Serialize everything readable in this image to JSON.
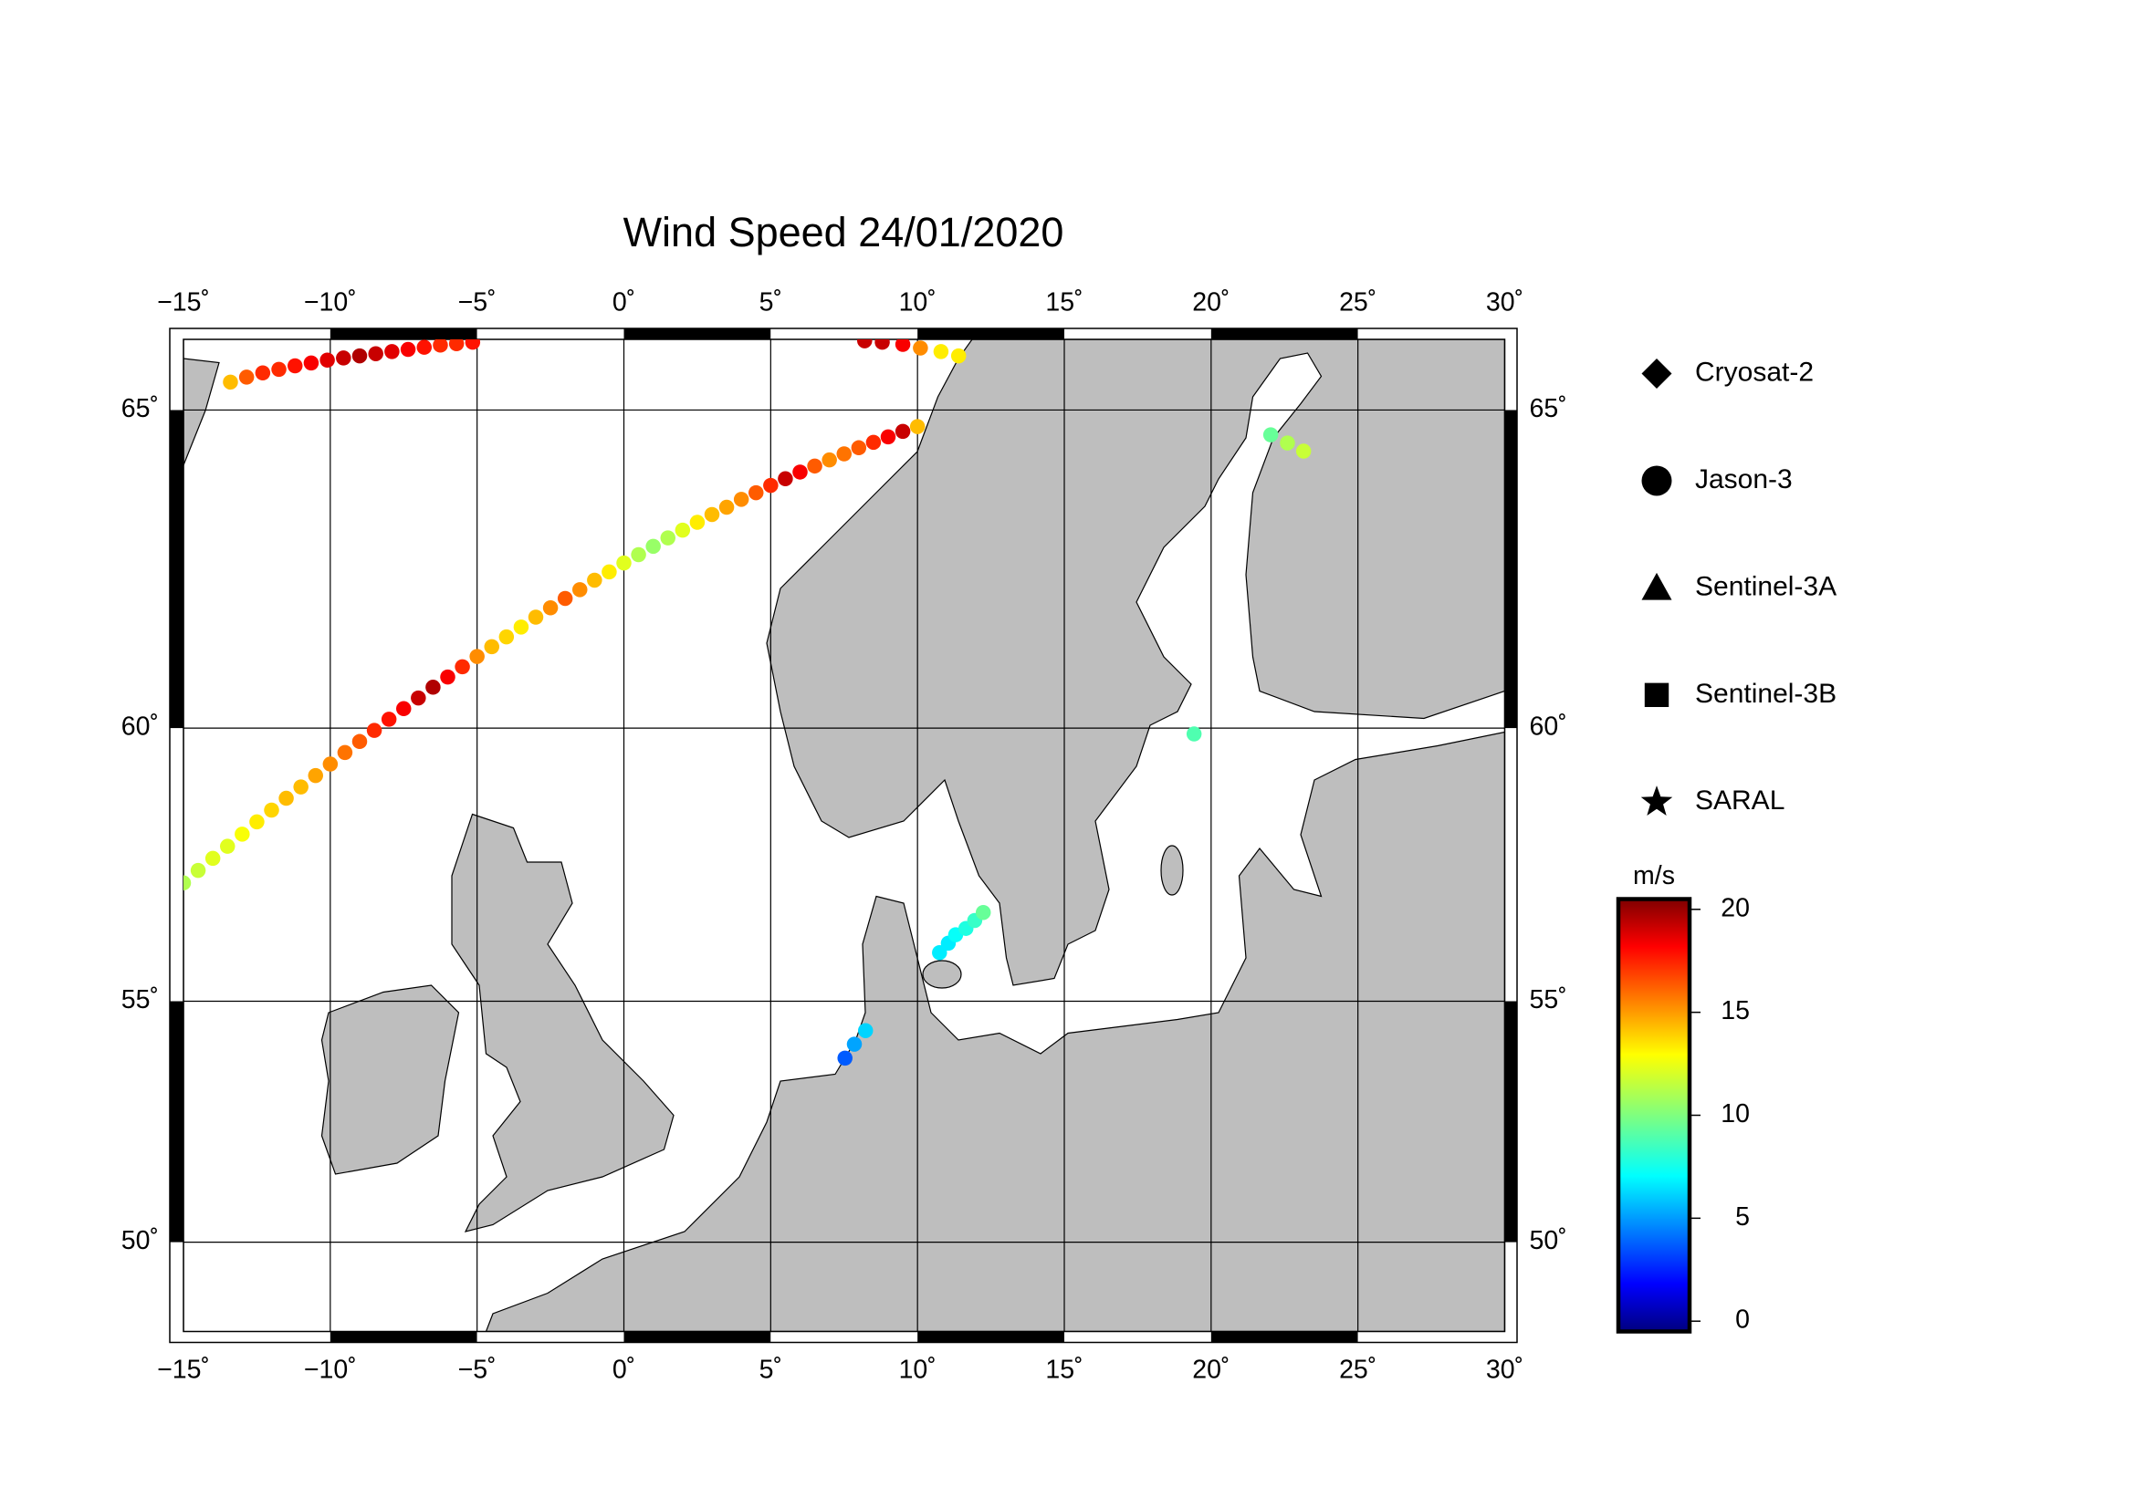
{
  "chart_data": {
    "type": "map",
    "title": "Wind Speed 24/01/2020",
    "xlim": [
      -15,
      30
    ],
    "ylim": [
      48,
      66
    ],
    "xticks": [
      {
        "value": -15,
        "label": "−15˚"
      },
      {
        "value": -10,
        "label": "−10˚"
      },
      {
        "value": -5,
        "label": "−5˚"
      },
      {
        "value": 0,
        "label": "0˚"
      },
      {
        "value": 5,
        "label": "5˚"
      },
      {
        "value": 10,
        "label": "10˚"
      },
      {
        "value": 15,
        "label": "15˚"
      },
      {
        "value": 20,
        "label": "20˚"
      },
      {
        "value": 25,
        "label": "25˚"
      },
      {
        "value": 30,
        "label": "30˚"
      }
    ],
    "yticks": [
      {
        "value": 50,
        "label": "50˚"
      },
      {
        "value": 55,
        "label": "55˚"
      },
      {
        "value": 60,
        "label": "60˚"
      },
      {
        "value": 65,
        "label": "65˚"
      }
    ],
    "grid": true,
    "series": [
      {
        "name": "Cryosat-2",
        "marker": "diamond",
        "x": [],
        "y": [],
        "values": []
      },
      {
        "name": "Jason-3",
        "marker": "circle",
        "x": [
          -15,
          -14.5,
          -14,
          -13.5,
          -13,
          -12.5,
          -12,
          -11.5,
          -11,
          -10.5,
          -10,
          -9.5,
          -9,
          -8.5,
          -8,
          -7.5,
          -7,
          -6.5,
          -6,
          -5.5,
          -5,
          -4.5,
          -4,
          -3.5,
          -3,
          -2.5,
          -2,
          -1.5,
          -1,
          -0.5,
          0,
          0.5,
          1,
          1.5,
          2,
          2.5,
          3,
          3.5,
          4,
          4.5,
          5,
          5.5,
          6,
          6.5,
          7,
          7.5,
          8,
          8.5,
          9,
          9.5,
          10,
          -13.4,
          -12.85,
          -12.3,
          -11.75,
          -11.2,
          -10.65,
          -10.1,
          -9.55,
          -9.0,
          -8.45,
          -7.9,
          -7.35,
          -6.8,
          -6.25,
          -5.7,
          -5.15,
          8.2,
          8.8,
          9.5,
          10.1,
          10.8,
          11.4,
          10.75,
          11.05,
          11.3,
          11.65,
          11.95,
          12.24,
          7.53,
          7.85,
          8.23,
          19.42,
          22.03,
          22.6,
          23.15
        ],
        "y": [
          57.25,
          57.48,
          57.7,
          57.92,
          58.14,
          58.36,
          58.57,
          58.78,
          58.98,
          59.18,
          59.38,
          59.58,
          59.77,
          59.96,
          60.15,
          60.33,
          60.51,
          60.69,
          60.86,
          61.03,
          61.2,
          61.36,
          61.52,
          61.68,
          61.84,
          61.99,
          62.14,
          62.28,
          62.43,
          62.56,
          62.7,
          62.83,
          62.96,
          63.09,
          63.21,
          63.33,
          63.45,
          63.56,
          63.68,
          63.78,
          63.89,
          63.99,
          64.09,
          64.18,
          64.27,
          64.36,
          64.45,
          64.53,
          64.61,
          64.69,
          64.76,
          65.4,
          65.47,
          65.53,
          65.58,
          65.63,
          65.67,
          65.71,
          65.74,
          65.77,
          65.8,
          65.83,
          65.86,
          65.89,
          65.92,
          65.94,
          65.96,
          65.98,
          65.96,
          65.93,
          65.88,
          65.83,
          65.77,
          55.94,
          56.12,
          56.28,
          56.4,
          56.55,
          56.7,
          53.87,
          54.15,
          54.42,
          59.9,
          64.64,
          64.52,
          64.4
        ],
        "values": [
          11,
          11.5,
          12,
          12,
          12.5,
          13,
          13.5,
          14,
          14,
          14.5,
          15,
          15.5,
          16,
          17,
          17.5,
          18,
          19,
          19.5,
          18,
          17,
          15,
          14,
          13.5,
          13,
          14,
          15,
          16,
          15,
          14,
          13,
          12,
          11,
          10.5,
          11,
          12,
          13,
          14,
          14.5,
          15,
          16,
          17,
          19,
          18,
          16,
          15,
          15.5,
          16,
          17,
          18,
          19,
          14,
          14,
          16,
          17,
          17,
          17.5,
          18,
          18.5,
          19,
          19.5,
          19,
          18.5,
          18,
          17.5,
          17,
          17,
          17.5,
          19,
          19,
          18,
          15,
          13,
          13,
          7,
          7,
          7.5,
          8,
          8.5,
          9.5,
          4,
          5.5,
          6.5,
          9,
          9.5,
          11,
          11.5
        ]
      },
      {
        "name": "Sentinel-3A",
        "marker": "triangle",
        "x": [],
        "y": [],
        "values": []
      },
      {
        "name": "Sentinel-3B",
        "marker": "square",
        "x": [],
        "y": [],
        "values": []
      },
      {
        "name": "SARAL",
        "marker": "star",
        "x": [],
        "y": [],
        "values": []
      }
    ],
    "colorbar": {
      "label": "m/s",
      "lim": [
        -0.5,
        20.5
      ],
      "ticks": [
        0,
        5,
        10,
        15,
        20
      ],
      "colormap": "jet"
    }
  }
}
